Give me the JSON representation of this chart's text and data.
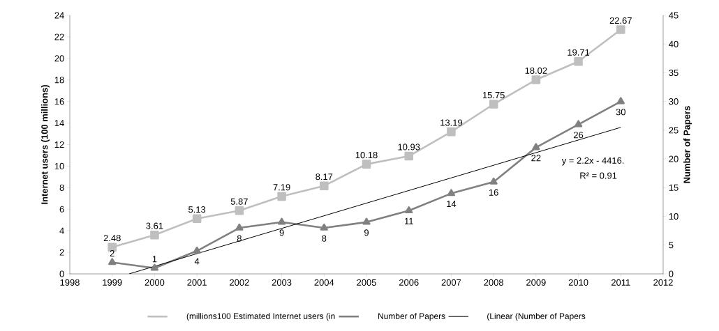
{
  "chart_data": {
    "type": "line",
    "x": [
      1999,
      2000,
      2001,
      2002,
      2003,
      2004,
      2005,
      2006,
      2007,
      2008,
      2009,
      2010,
      2011
    ],
    "series": [
      {
        "name": "(millions100 Estimated Internet users (in",
        "color": "#bfbfbf",
        "marker": "square",
        "values": [
          2.48,
          3.61,
          5.13,
          5.87,
          7.19,
          8.17,
          10.18,
          10.93,
          13.19,
          15.75,
          18.02,
          19.71,
          22.67
        ],
        "value_labels": [
          "2.48",
          "3.61",
          "5.13",
          "5.87",
          "7.19",
          "8.17",
          "10.18",
          "10.93",
          "13.19",
          "15.75",
          "18.02",
          "19.71",
          "22.67"
        ]
      },
      {
        "name": "Number  of Papers",
        "color": "#808080",
        "marker": "triangle",
        "axis": "y2",
        "values": [
          2,
          1,
          4,
          8,
          9,
          8,
          9,
          11,
          14,
          16,
          22,
          26,
          30
        ],
        "value_labels": [
          "2",
          "1",
          "4",
          "8",
          "9",
          "8",
          "9",
          "11",
          "14",
          "16",
          "22",
          "26",
          "30"
        ]
      },
      {
        "name": "(Linear (Number  of Papers",
        "color": "#000000",
        "marker": "none",
        "axis": "y2",
        "x": [
          1999.4,
          2011
        ],
        "values": [
          0,
          25.5
        ]
      }
    ],
    "ylabel": "Internet users (100 millions)",
    "y2label": "Number of Papers",
    "xlim": [
      1998,
      2012
    ],
    "xticks": [
      1998,
      1999,
      2000,
      2001,
      2002,
      2003,
      2004,
      2005,
      2006,
      2007,
      2008,
      2009,
      2010,
      2011,
      2012
    ],
    "ylim": [
      0,
      24
    ],
    "yticks": [
      0,
      2,
      4,
      6,
      8,
      10,
      12,
      14,
      16,
      18,
      20,
      22,
      24
    ],
    "y2lim": [
      0,
      45
    ],
    "y2ticks": [
      0,
      5,
      10,
      15,
      20,
      25,
      30,
      35,
      40,
      45
    ],
    "annotations": [
      "y = 2.2x - 4416.",
      "R² = 0.91"
    ],
    "grid": false,
    "legend": "bottom"
  }
}
